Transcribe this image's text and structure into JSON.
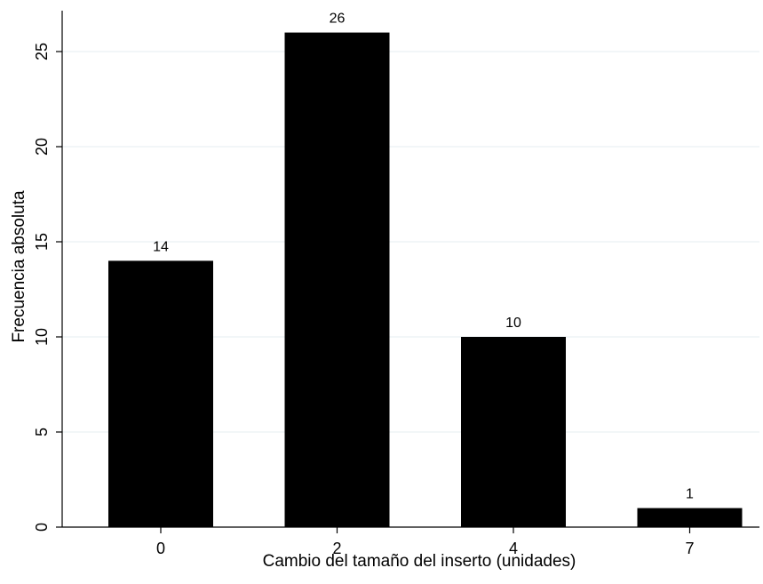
{
  "chart_data": {
    "type": "bar",
    "categories": [
      "0",
      "2",
      "4",
      "7"
    ],
    "values": [
      14,
      26,
      10,
      1
    ],
    "data_labels": [
      "14",
      "26",
      "10",
      "1"
    ],
    "y_ticks": [
      0,
      5,
      10,
      15,
      20,
      25
    ],
    "ylim": [
      0,
      27
    ],
    "title": "",
    "xlabel": "Cambio del tamaño del inserto (unidades)",
    "ylabel": "Frecuencia absoluta",
    "grid": true,
    "grid_color": "#e6eef2",
    "bar_color": "#000000"
  }
}
